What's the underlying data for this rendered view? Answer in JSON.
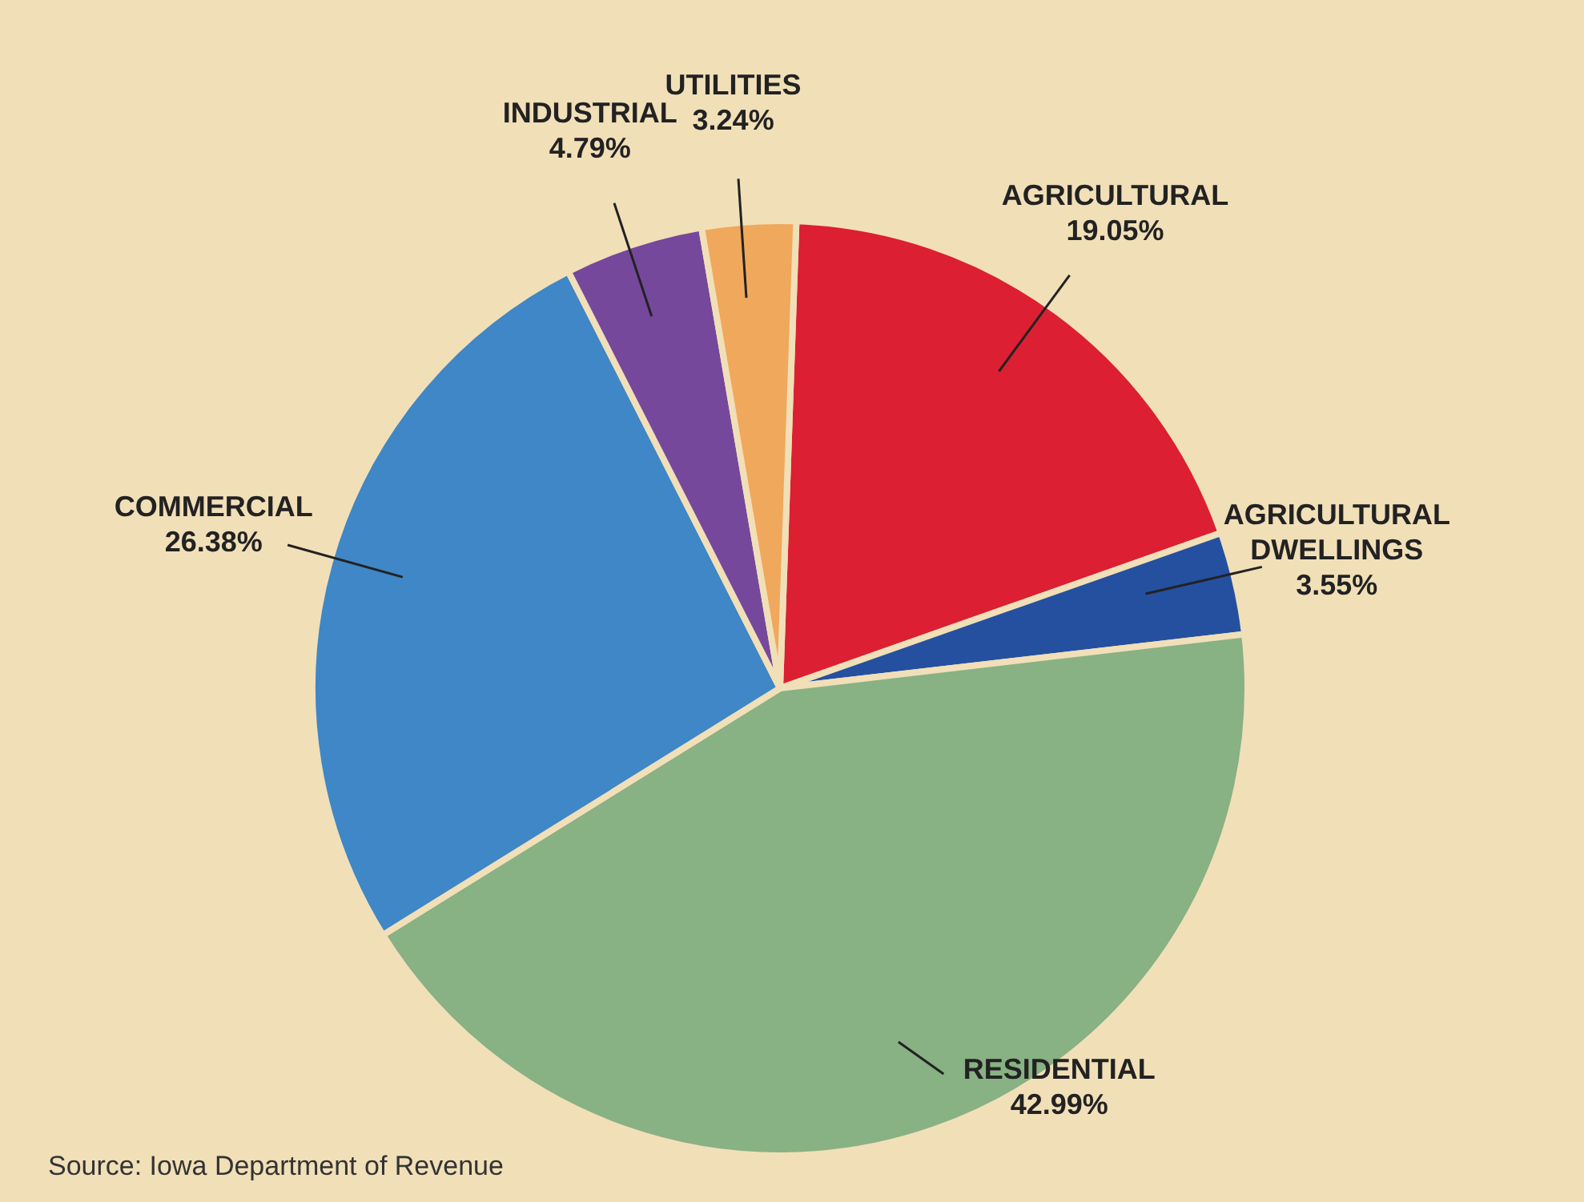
{
  "chart_data": {
    "type": "pie",
    "categories": [
      "AGRICULTURAL",
      "AGRICULTURAL DWELLINGS",
      "RESIDENTIAL",
      "COMMERCIAL",
      "INDUSTRIAL",
      "UTILITIES"
    ],
    "values": [
      19.05,
      3.55,
      42.99,
      26.38,
      4.79,
      3.24
    ],
    "colors": [
      "#dc1f32",
      "#2550a0",
      "#88b184",
      "#3f87c6",
      "#76489c",
      "#f0a85c"
    ],
    "value_labels": [
      "19.05%",
      "3.55%",
      "42.99%",
      "26.38%",
      "4.79%",
      "3.24%"
    ],
    "annotations": [
      "Source: Iowa Department of Revenue"
    ]
  }
}
